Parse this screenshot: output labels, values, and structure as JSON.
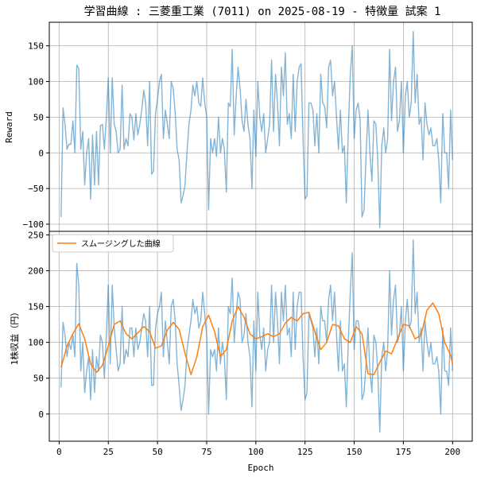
{
  "chart_data": {
    "type": "line",
    "title": "学習曲線 : 三菱重工業 (7011) on 2025-08-19 - 特徴量 試案 1",
    "xlabel": "Epoch",
    "xlim": [
      -5,
      210
    ],
    "x_ticks": [
      0,
      25,
      50,
      75,
      100,
      125,
      150,
      175,
      200
    ],
    "grid": true,
    "colors": {
      "raw": "#1f77b4",
      "smooth": "#ff7f0e"
    },
    "panels": [
      {
        "ylabel": "Reward",
        "ylim": [
          -110,
          183
        ],
        "y_ticks": [
          -100,
          -50,
          0,
          50,
          100,
          150
        ],
        "series": [
          {
            "role": "raw",
            "x_start": 1,
            "values": [
              -90,
              63,
              40,
              5,
              12,
              12,
              45,
              0,
              123,
              118,
              5,
              30,
              -45,
              0,
              20,
              -65,
              25,
              -45,
              30,
              -45,
              38,
              40,
              5,
              50,
              105,
              0,
              105,
              40,
              30,
              0,
              5,
              95,
              5,
              20,
              10,
              55,
              50,
              18,
              55,
              25,
              40,
              60,
              88,
              70,
              10,
              100,
              -30,
              -25,
              55,
              75,
              100,
              110,
              20,
              60,
              40,
              20,
              100,
              90,
              55,
              5,
              -10,
              -70,
              -60,
              -45,
              0,
              40,
              60,
              95,
              80,
              100,
              70,
              65,
              105,
              70,
              50,
              -80,
              20,
              0,
              20,
              -5,
              50,
              0,
              20,
              5,
              -55,
              70,
              65,
              145,
              25,
              80,
              120,
              90,
              45,
              30,
              75,
              40,
              20,
              -50,
              60,
              -5,
              100,
              50,
              30,
              55,
              0,
              20,
              40,
              130,
              30,
              110,
              70,
              10,
              120,
              80,
              140,
              40,
              55,
              20,
              110,
              30,
              100,
              120,
              125,
              20,
              -65,
              -60,
              70,
              70,
              60,
              10,
              55,
              0,
              110,
              70,
              65,
              35,
              120,
              130,
              80,
              100,
              50,
              5,
              60,
              0,
              10,
              -70,
              30,
              110,
              150,
              20,
              60,
              70,
              45,
              -90,
              -80,
              -5,
              60,
              0,
              -40,
              45,
              40,
              -10,
              -105,
              10,
              35,
              0,
              20,
              145,
              45,
              100,
              120,
              30,
              45,
              100,
              0,
              80,
              100,
              50,
              70,
              170,
              70,
              110,
              40,
              50,
              -10,
              70,
              40,
              25,
              35,
              10,
              10,
              20,
              -10,
              -70,
              55,
              0,
              0,
              -50,
              60,
              -10
            ],
            "color": "#1f77b4"
          }
        ]
      },
      {
        "ylabel": "1株収益（円）",
        "ylim": [
          -38,
          255
        ],
        "y_ticks": [
          0,
          50,
          100,
          150,
          200,
          250
        ],
        "legend": {
          "position": "upper left",
          "entries": [
            "スムージングした曲線"
          ]
        },
        "series": [
          {
            "role": "raw",
            "x_start": 1,
            "values": [
              37,
              128,
              110,
              80,
              100,
              90,
              110,
              80,
              210,
              180,
              60,
              100,
              30,
              60,
              80,
              20,
              90,
              30,
              80,
              60,
              110,
              100,
              50,
              110,
              180,
              70,
              180,
              120,
              90,
              60,
              70,
              150,
              70,
              90,
              80,
              120,
              120,
              80,
              120,
              90,
              100,
              120,
              140,
              130,
              80,
              150,
              40,
              40,
              120,
              140,
              150,
              170,
              80,
              130,
              100,
              70,
              150,
              160,
              130,
              70,
              40,
              5,
              20,
              40,
              90,
              110,
              130,
              160,
              140,
              150,
              120,
              130,
              170,
              140,
              110,
              0,
              90,
              80,
              90,
              60,
              120,
              70,
              100,
              80,
              20,
              150,
              140,
              190,
              100,
              140,
              170,
              160,
              100,
              110,
              140,
              100,
              80,
              10,
              130,
              60,
              170,
              110,
              90,
              120,
              60,
              90,
              100,
              180,
              100,
              170,
              130,
              70,
              170,
              130,
              180,
              110,
              120,
              80,
              170,
              90,
              150,
              170,
              170,
              80,
              20,
              30,
              140,
              130,
              120,
              80,
              120,
              70,
              150,
              130,
              130,
              100,
              160,
              180,
              130,
              170,
              110,
              60,
              130,
              60,
              70,
              10,
              100,
              170,
              225,
              90,
              130,
              130,
              110,
              20,
              30,
              70,
              120,
              60,
              30,
              110,
              100,
              60,
              -25,
              80,
              100,
              60,
              90,
              200,
              110,
              160,
              180,
              100,
              110,
              150,
              60,
              130,
              160,
              120,
              130,
              243,
              140,
              170,
              100,
              120,
              60,
              130,
              100,
              80,
              100,
              70,
              70,
              80,
              60,
              0,
              120,
              60,
              60,
              40,
              120,
              60
            ],
            "color": "#1f77b4"
          },
          {
            "role": "smooth",
            "name": "スムージングした曲線",
            "x": [
              1,
              4,
              7,
              10,
              13,
              16,
              19,
              22,
              25,
              28,
              31,
              34,
              37,
              40,
              43,
              46,
              49,
              52,
              55,
              58,
              61,
              64,
              67,
              70,
              73,
              76,
              79,
              82,
              85,
              88,
              91,
              94,
              97,
              100,
              103,
              106,
              109,
              112,
              115,
              118,
              121,
              124,
              127,
              130,
              133,
              136,
              139,
              142,
              145,
              148,
              151,
              154,
              157,
              160,
              163,
              166,
              169,
              172,
              175,
              178,
              181,
              184,
              187,
              190,
              193,
              196,
              199,
              200
            ],
            "values": [
              65,
              95,
              112,
              126,
              105,
              70,
              58,
              68,
              95,
              125,
              130,
              112,
              105,
              113,
              122,
              115,
              92,
              95,
              117,
              128,
              118,
              85,
              55,
              80,
              122,
              138,
              115,
              80,
              90,
              130,
              150,
              135,
              112,
              105,
              108,
              112,
              108,
              112,
              127,
              135,
              130,
              140,
              142,
              115,
              90,
              100,
              125,
              123,
              105,
              100,
              122,
              112,
              56,
              55,
              72,
              88,
              84,
              105,
              125,
              123,
              105,
              110,
              145,
              155,
              140,
              100,
              82,
              70
            ],
            "color": "#ff7f0e"
          }
        ]
      }
    ]
  }
}
